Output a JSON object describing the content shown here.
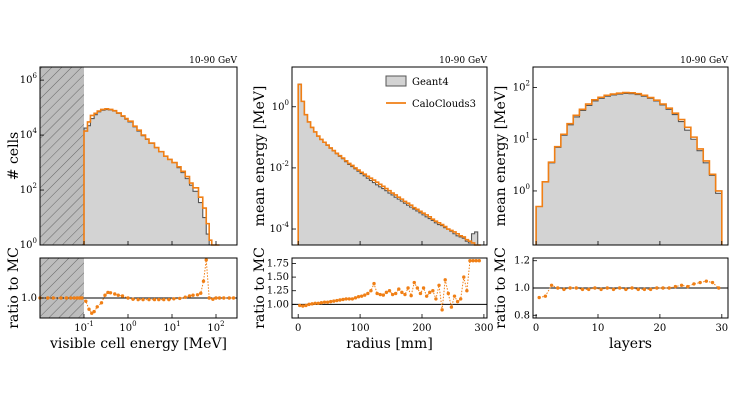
{
  "figure": {
    "energy_tag": "10-90 GeV",
    "colors": {
      "geant4_fill": "#d3d3d3",
      "geant4_edge": "#555555",
      "calo": "#f07f15",
      "ref_line": "#000000",
      "hatch": "#777777"
    },
    "legend": {
      "geant4": "Geant4",
      "calo": "CaloClouds3"
    }
  },
  "chart_data": [
    {
      "type": "histogram",
      "id": "cell-energy",
      "energy_tag": "10-90 GeV",
      "ylabel": "# cells",
      "xlabel": "visible cell energy [MeV]",
      "ratio_ylabel": "ratio to MC",
      "xscale": "log",
      "yscale": "log",
      "xlim": [
        0.01,
        300
      ],
      "ylim": [
        1,
        3000000
      ],
      "ratio_ylim": [
        0.5,
        2.0
      ],
      "ratio_yticks": [
        1.0
      ],
      "x_ticks": [
        "10^-1",
        "10^0",
        "10^1",
        "10^2"
      ],
      "x_tick_values": [
        0.1,
        1,
        10,
        100
      ],
      "y_ticks": [
        "10^0",
        "10^2",
        "10^4",
        "10^6"
      ],
      "y_tick_values": [
        1,
        100,
        10000,
        1000000
      ],
      "hatched_region": [
        0.01,
        0.1
      ],
      "x": [
        0.1,
        0.12,
        0.14,
        0.17,
        0.2,
        0.24,
        0.3,
        0.36,
        0.45,
        0.55,
        0.7,
        0.85,
        1.0,
        1.3,
        1.6,
        2.0,
        2.5,
        3.0,
        4.0,
        5.0,
        6.5,
        8.0,
        10,
        13,
        16,
        20,
        25,
        30,
        40,
        50,
        60,
        70,
        80,
        100,
        120
      ],
      "geant4": [
        18000,
        22000,
        40000,
        55000,
        70000,
        80000,
        85000,
        82000,
        75000,
        62000,
        48000,
        38000,
        30000,
        20000,
        14000,
        9500,
        7000,
        5000,
        3500,
        2500,
        1700,
        1300,
        1000,
        650,
        430,
        260,
        150,
        90,
        35,
        10,
        2.5,
        1,
        1,
        1
      ],
      "calo": [
        14000,
        30000,
        52000,
        62000,
        75000,
        86000,
        90000,
        86000,
        77000,
        64000,
        50000,
        40000,
        32000,
        21000,
        15000,
        10000,
        7200,
        5100,
        3500,
        2500,
        1700,
        1300,
        1000,
        700,
        480,
        310,
        180,
        120,
        55,
        22,
        6,
        1.5,
        1,
        1
      ],
      "ratio_x": [
        0.01,
        0.015,
        0.02,
        0.03,
        0.04,
        0.05,
        0.06,
        0.07,
        0.08,
        0.09,
        0.11,
        0.13,
        0.15,
        0.17,
        0.2,
        0.25,
        0.3,
        0.35,
        0.4,
        0.5,
        0.6,
        0.75,
        1.0,
        1.3,
        1.7,
        2.2,
        3,
        4,
        5,
        6.5,
        8.5,
        11,
        15,
        20,
        25,
        30,
        38,
        45,
        52,
        60,
        70,
        85,
        100,
        120,
        150,
        200,
        250
      ],
      "ratio": [
        1.0,
        1.0,
        1.0,
        1.0,
        1.0,
        1.0,
        1.0,
        1.0,
        1.0,
        1.0,
        0.92,
        0.72,
        0.62,
        0.66,
        0.78,
        0.88,
        1.07,
        1.14,
        1.13,
        1.1,
        1.07,
        1.05,
        1.0,
        0.97,
        0.96,
        0.96,
        0.96,
        0.96,
        0.96,
        0.96,
        0.96,
        0.98,
        0.99,
        1.02,
        1.05,
        1.07,
        1.08,
        1.12,
        1.42,
        1.95,
        1.0,
        0.97,
        1.0,
        1.0,
        1.0,
        1.0,
        1.0
      ]
    },
    {
      "type": "histogram",
      "id": "radius",
      "energy_tag": "10-90 GeV",
      "ylabel": "mean energy [MeV]",
      "xlabel": "radius [mm]",
      "ratio_ylabel": "ratio to MC",
      "xscale": "linear",
      "yscale": "log",
      "xlim": [
        -10,
        305
      ],
      "ylim": [
        3e-05,
        20
      ],
      "ratio_ylim": [
        0.75,
        1.85
      ],
      "ratio_yticks": [
        1.0,
        1.25,
        1.5,
        1.75
      ],
      "ratio_ytick_labels": [
        "1.00",
        "1.25",
        "1.50",
        "1.75"
      ],
      "x_ticks": [
        "0",
        "100",
        "200",
        "300"
      ],
      "x_tick_values": [
        0,
        100,
        200,
        300
      ],
      "y_ticks": [
        "10^-4",
        "10^-2",
        "10^0"
      ],
      "y_tick_values": [
        0.0001,
        0.01,
        1
      ],
      "bin_edges": [
        0,
        5,
        10,
        15,
        20,
        25,
        30,
        35,
        40,
        45,
        50,
        55,
        60,
        65,
        70,
        75,
        80,
        85,
        90,
        95,
        100,
        105,
        110,
        115,
        120,
        125,
        130,
        135,
        140,
        145,
        150,
        155,
        160,
        165,
        170,
        175,
        180,
        185,
        190,
        195,
        200,
        205,
        210,
        215,
        220,
        225,
        230,
        235,
        240,
        245,
        250,
        255,
        260,
        265,
        270,
        275,
        280,
        285,
        290,
        295
      ],
      "geant4": [
        5.5,
        1.5,
        0.55,
        0.32,
        0.21,
        0.15,
        0.11,
        0.085,
        0.068,
        0.055,
        0.044,
        0.036,
        0.029,
        0.024,
        0.02,
        0.016,
        0.013,
        0.011,
        0.0093,
        0.0078,
        0.0065,
        0.0055,
        0.0046,
        0.0039,
        0.0033,
        0.0028,
        0.0024,
        0.0021,
        0.0018,
        0.0015,
        0.0013,
        0.0011,
        0.00095,
        0.00082,
        0.0007,
        0.0006,
        0.00052,
        0.00045,
        0.00039,
        0.00034,
        0.00029,
        0.00025,
        0.00022,
        0.00019,
        0.00016,
        0.00014,
        0.00013,
        0.00011,
        0.0001,
        8.5e-05,
        7e-05,
        6e-05,
        5.5e-05,
        5e-05,
        4e-05,
        3.5e-05,
        7e-05,
        8e-05,
        3e-05
      ],
      "calo": [
        5.4,
        1.5,
        0.55,
        0.32,
        0.21,
        0.15,
        0.11,
        0.085,
        0.069,
        0.056,
        0.045,
        0.037,
        0.03,
        0.025,
        0.021,
        0.017,
        0.014,
        0.012,
        0.01,
        0.0085,
        0.0072,
        0.0062,
        0.0053,
        0.0046,
        0.004,
        0.0034,
        0.0029,
        0.0025,
        0.0021,
        0.0018,
        0.0015,
        0.0013,
        0.0011,
        0.00095,
        0.0008,
        0.0007,
        0.0006,
        0.0005,
        0.00044,
        0.00038,
        0.00033,
        0.00029,
        0.00025,
        0.00021,
        0.00018,
        0.00016,
        0.00014,
        0.00012,
        0.0001,
        9e-05,
        8e-05,
        7e-05,
        6e-05,
        5.5e-05,
        4.5e-05,
        4e-05,
        3.5e-05,
        3e-05,
        3e-05
      ],
      "ratio_x": [
        2.5,
        7.5,
        12.5,
        17.5,
        22.5,
        27.5,
        32.5,
        37.5,
        42.5,
        47.5,
        52.5,
        57.5,
        62.5,
        67.5,
        72.5,
        77.5,
        82.5,
        87.5,
        92.5,
        97.5,
        102.5,
        107.5,
        112.5,
        117.5,
        122.5,
        127.5,
        132.5,
        137.5,
        142.5,
        147.5,
        152.5,
        157.5,
        162.5,
        167.5,
        172.5,
        177.5,
        182.5,
        187.5,
        192.5,
        197.5,
        202.5,
        207.5,
        212.5,
        217.5,
        222.5,
        227.5,
        232.5,
        237.5,
        242.5,
        247.5,
        252.5,
        257.5,
        262.5,
        267.5,
        272.5,
        277.5,
        282.5,
        287.5,
        292.5
      ],
      "ratio": [
        0.98,
        0.97,
        0.98,
        1.0,
        1.01,
        1.02,
        1.02,
        1.03,
        1.04,
        1.04,
        1.05,
        1.06,
        1.07,
        1.08,
        1.09,
        1.1,
        1.1,
        1.1,
        1.12,
        1.14,
        1.15,
        1.17,
        1.2,
        1.25,
        1.38,
        1.2,
        1.18,
        1.17,
        1.22,
        1.25,
        1.18,
        1.2,
        1.28,
        1.22,
        1.18,
        1.3,
        1.16,
        1.4,
        1.3,
        1.2,
        1.3,
        1.15,
        1.22,
        1.25,
        1.1,
        1.35,
        0.9,
        1.45,
        1.2,
        0.95,
        1.15,
        1.05,
        1.1,
        1.5,
        1.25,
        1.8,
        1.8,
        1.8,
        1.8
      ]
    },
    {
      "type": "histogram",
      "id": "layers",
      "energy_tag": "10-90 GeV",
      "ylabel": "mean energy [MeV]",
      "xlabel": "layers",
      "ratio_ylabel": "ratio to MC",
      "xscale": "linear",
      "yscale": "log",
      "xlim": [
        -0.5,
        31
      ],
      "ylim": [
        0.09,
        250
      ],
      "ratio_ylim": [
        0.78,
        1.22
      ],
      "ratio_yticks": [
        0.8,
        1.0,
        1.2
      ],
      "ratio_ytick_labels": [
        "0.8",
        "1.0",
        "1.2"
      ],
      "x_ticks": [
        "0",
        "10",
        "20",
        "30"
      ],
      "x_tick_values": [
        0,
        10,
        20,
        30
      ],
      "y_ticks": [
        "10^0",
        "10^1",
        "10^2"
      ],
      "y_tick_values": [
        1,
        10,
        100
      ],
      "bin_edges": [
        0,
        1,
        2,
        3,
        4,
        5,
        6,
        7,
        8,
        9,
        10,
        11,
        12,
        13,
        14,
        15,
        16,
        17,
        18,
        19,
        20,
        21,
        22,
        23,
        24,
        25,
        26,
        27,
        28,
        29,
        30
      ],
      "geant4": [
        0.5,
        1.5,
        3.5,
        7,
        12,
        19,
        27,
        36,
        45,
        55,
        62,
        68,
        72,
        75,
        77,
        76,
        73,
        68,
        62,
        55,
        46,
        38,
        30,
        22,
        15,
        10,
        6,
        3.5,
        2,
        0.9
      ],
      "calo": [
        0.5,
        1.5,
        3.6,
        7.2,
        12.5,
        20,
        29,
        38,
        48,
        58,
        65,
        71,
        75,
        78,
        80,
        79,
        76,
        71,
        64,
        57,
        48,
        40,
        32,
        24,
        17,
        11,
        6.5,
        3.8,
        2.1,
        1.0
      ],
      "ratio_x": [
        0.5,
        1.5,
        2.5,
        3.5,
        4.5,
        5.5,
        6.5,
        7.5,
        8.5,
        9.5,
        10.5,
        11.5,
        12.5,
        13.5,
        14.5,
        15.5,
        16.5,
        17.5,
        18.5,
        19.5,
        20.5,
        21.5,
        22.5,
        23.5,
        24.5,
        25.5,
        26.5,
        27.5,
        28.5,
        29.5
      ],
      "ratio": [
        0.93,
        0.94,
        1.02,
        1.0,
        0.99,
        1.0,
        1.0,
        0.99,
        0.99,
        1.0,
        0.99,
        1.0,
        0.99,
        1.0,
        0.99,
        1.0,
        0.99,
        0.99,
        0.99,
        1.0,
        1.0,
        1.0,
        1.01,
        1.02,
        1.01,
        1.03,
        1.04,
        1.05,
        1.04,
        1.0
      ]
    }
  ]
}
